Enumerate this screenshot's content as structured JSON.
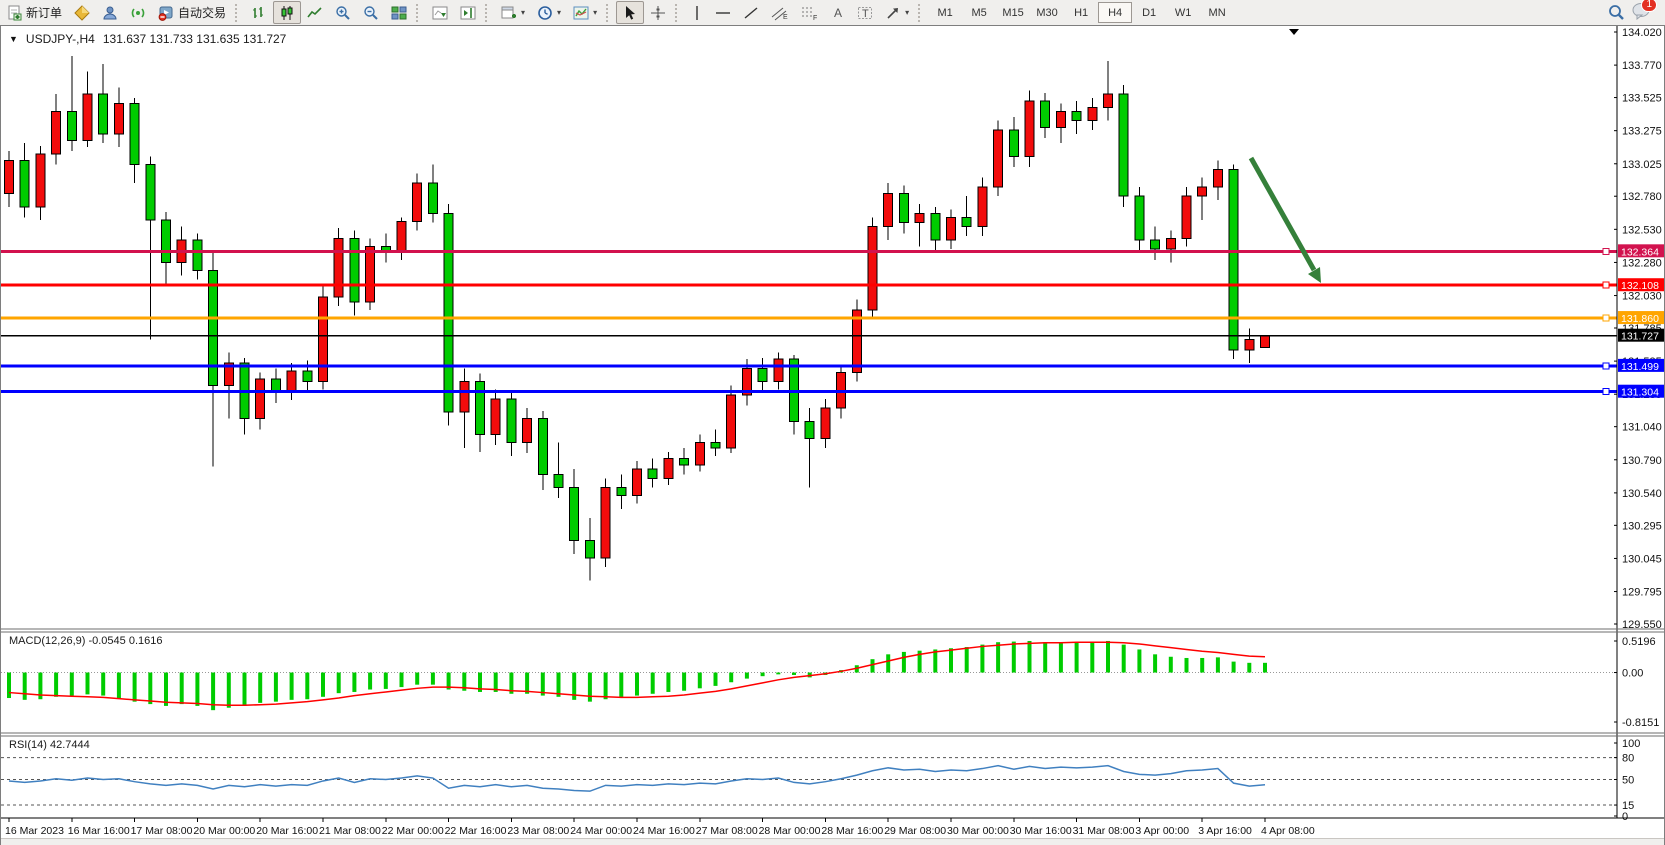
{
  "toolbar": {
    "new_order": "新订单",
    "auto_trading": "自动交易",
    "timeframes": [
      "M1",
      "M5",
      "M15",
      "M30",
      "H1",
      "H4",
      "D1",
      "W1",
      "MN"
    ],
    "active_timeframe": "H4",
    "notification_count": "1"
  },
  "chart": {
    "symbol_period": "USDJPY-,H4",
    "ohlc_text": "131.637 131.733 131.635 131.727",
    "current_price": "131.727"
  },
  "macd": {
    "label": "MACD(12,26,9) -0.0545 0.1616"
  },
  "rsi": {
    "label": "RSI(14) 42.7444"
  },
  "chart_data": {
    "type": "candlestick",
    "symbol": "USDJPY-",
    "period": "H4",
    "ylim": [
      129.55,
      134.02
    ],
    "price_axis_ticks": [
      "134.020",
      "133.770",
      "133.525",
      "133.275",
      "133.025",
      "132.780",
      "132.530",
      "132.280",
      "132.030",
      "131.785",
      "131.535",
      "131.285",
      "131.040",
      "130.790",
      "130.540",
      "130.295",
      "130.045",
      "129.795",
      "129.550"
    ],
    "date_labels": [
      "16 Mar 2023",
      "16 Mar 16:00",
      "17 Mar 08:00",
      "20 Mar 00:00",
      "20 Mar 16:00",
      "21 Mar 08:00",
      "22 Mar 00:00",
      "22 Mar 16:00",
      "23 Mar 08:00",
      "24 Mar 00:00",
      "24 Mar 16:00",
      "27 Mar 08:00",
      "28 Mar 00:00",
      "28 Mar 16:00",
      "29 Mar 08:00",
      "30 Mar 00:00",
      "30 Mar 16:00",
      "31 Mar 08:00",
      "3 Apr 00:00",
      "3 Apr 16:00",
      "4 Apr 08:00"
    ],
    "up_color": "#F20C0C",
    "down_color": "#00CC00",
    "candles_ohlc": [
      [
        132.8,
        133.12,
        132.7,
        133.05
      ],
      [
        133.05,
        133.18,
        132.62,
        132.7
      ],
      [
        132.7,
        133.16,
        132.6,
        133.1
      ],
      [
        133.1,
        133.55,
        133.02,
        133.42
      ],
      [
        133.42,
        133.84,
        133.12,
        133.2
      ],
      [
        133.2,
        133.72,
        133.15,
        133.55
      ],
      [
        133.55,
        133.78,
        133.18,
        133.25
      ],
      [
        133.25,
        133.6,
        133.15,
        133.48
      ],
      [
        133.48,
        133.52,
        132.88,
        133.02
      ],
      [
        133.02,
        133.08,
        131.7,
        132.6
      ],
      [
        132.6,
        132.66,
        132.1,
        132.28
      ],
      [
        132.28,
        132.55,
        132.18,
        132.45
      ],
      [
        132.45,
        132.5,
        132.15,
        132.22
      ],
      [
        132.22,
        132.35,
        130.74,
        131.35
      ],
      [
        131.35,
        131.6,
        131.1,
        131.52
      ],
      [
        131.52,
        131.56,
        130.98,
        131.1
      ],
      [
        131.1,
        131.45,
        131.02,
        131.4
      ],
      [
        131.4,
        131.48,
        131.22,
        131.3
      ],
      [
        131.3,
        131.52,
        131.24,
        131.46
      ],
      [
        131.46,
        131.54,
        131.3,
        131.38
      ],
      [
        131.38,
        132.1,
        131.32,
        132.02
      ],
      [
        132.02,
        132.54,
        131.95,
        132.46
      ],
      [
        132.46,
        132.52,
        131.88,
        131.98
      ],
      [
        131.98,
        132.46,
        131.92,
        132.4
      ],
      [
        132.4,
        132.5,
        132.28,
        132.36
      ],
      [
        132.37,
        132.62,
        132.3,
        132.59
      ],
      [
        132.59,
        132.95,
        132.52,
        132.88
      ],
      [
        132.88,
        133.02,
        132.58,
        132.65
      ],
      [
        132.65,
        132.72,
        131.05,
        131.15
      ],
      [
        131.15,
        131.48,
        130.88,
        131.38
      ],
      [
        131.38,
        131.44,
        130.85,
        130.98
      ],
      [
        130.98,
        131.32,
        130.9,
        131.25
      ],
      [
        131.25,
        131.3,
        130.82,
        130.92
      ],
      [
        130.92,
        131.18,
        130.84,
        131.1
      ],
      [
        131.1,
        131.16,
        130.56,
        130.68
      ],
      [
        130.68,
        130.92,
        130.5,
        130.58
      ],
      [
        130.58,
        130.72,
        130.08,
        130.18
      ],
      [
        130.18,
        130.35,
        129.88,
        130.05
      ],
      [
        130.05,
        130.65,
        129.98,
        130.58
      ],
      [
        130.58,
        130.68,
        130.42,
        130.52
      ],
      [
        130.52,
        130.78,
        130.46,
        130.72
      ],
      [
        130.72,
        130.8,
        130.58,
        130.65
      ],
      [
        130.65,
        130.85,
        130.6,
        130.8
      ],
      [
        130.8,
        130.88,
        130.68,
        130.75
      ],
      [
        130.75,
        130.98,
        130.7,
        130.92
      ],
      [
        130.92,
        131.02,
        130.82,
        130.88
      ],
      [
        130.88,
        131.35,
        130.84,
        131.28
      ],
      [
        131.28,
        131.55,
        131.2,
        131.48
      ],
      [
        131.48,
        131.56,
        131.3,
        131.38
      ],
      [
        131.38,
        131.6,
        131.32,
        131.55
      ],
      [
        131.55,
        131.58,
        130.98,
        131.08
      ],
      [
        131.08,
        131.18,
        130.58,
        130.95
      ],
      [
        130.95,
        131.25,
        130.88,
        131.18
      ],
      [
        131.18,
        131.5,
        131.1,
        131.45
      ],
      [
        131.45,
        132.0,
        131.38,
        131.92
      ],
      [
        131.92,
        132.62,
        131.85,
        132.55
      ],
      [
        132.55,
        132.88,
        132.45,
        132.8
      ],
      [
        132.8,
        132.86,
        132.5,
        132.58
      ],
      [
        132.58,
        132.72,
        132.4,
        132.65
      ],
      [
        132.65,
        132.7,
        132.35,
        132.45
      ],
      [
        132.45,
        132.68,
        132.38,
        132.62
      ],
      [
        132.62,
        132.78,
        132.48,
        132.55
      ],
      [
        132.55,
        132.92,
        132.48,
        132.85
      ],
      [
        132.85,
        133.35,
        132.78,
        133.28
      ],
      [
        133.28,
        133.38,
        133.0,
        133.08
      ],
      [
        133.08,
        133.58,
        133.0,
        133.5
      ],
      [
        133.5,
        133.56,
        133.22,
        133.3
      ],
      [
        133.3,
        133.48,
        133.18,
        133.42
      ],
      [
        133.42,
        133.5,
        133.25,
        133.35
      ],
      [
        133.35,
        133.52,
        133.28,
        133.45
      ],
      [
        133.45,
        133.8,
        133.35,
        133.55
      ],
      [
        133.55,
        133.62,
        132.7,
        132.78
      ],
      [
        132.78,
        132.85,
        132.35,
        132.45
      ],
      [
        132.45,
        132.55,
        132.3,
        132.38
      ],
      [
        132.38,
        132.52,
        132.28,
        132.46
      ],
      [
        132.46,
        132.85,
        132.4,
        132.78
      ],
      [
        132.78,
        132.92,
        132.6,
        132.85
      ],
      [
        132.85,
        133.05,
        132.75,
        132.98
      ],
      [
        132.98,
        133.02,
        131.55,
        131.62
      ],
      [
        131.62,
        131.78,
        131.52,
        131.7
      ],
      [
        131.637,
        131.733,
        131.635,
        131.727
      ]
    ],
    "horizontal_lines": [
      {
        "price": 132.364,
        "label": "132.364",
        "color": "#D2124E"
      },
      {
        "price": 132.108,
        "label": "132.108",
        "color": "#FF0000"
      },
      {
        "price": 131.86,
        "label": "131.860",
        "color": "#FFA500"
      },
      {
        "price": 131.499,
        "label": "131.499",
        "color": "#0000FF"
      },
      {
        "price": 131.304,
        "label": "131.304",
        "color": "#0000FF"
      }
    ],
    "bid_line": {
      "price": 131.727,
      "label": "131.727",
      "color": "#000000"
    },
    "annotation_arrow": {
      "from": [
        1250,
        157
      ],
      "to": [
        1320,
        282
      ],
      "color": "#35803A"
    },
    "macd_panel": {
      "axis_labels": [
        {
          "v": 0.5196,
          "t": "0.5196"
        },
        {
          "v": 0.0,
          "t": "0.00"
        },
        {
          "v": -0.8151,
          "t": "-0.8151"
        }
      ],
      "range": [
        -0.8151,
        0.5196
      ],
      "histogram_color": "#00CC00",
      "signal_color": "#FF0000",
      "histogram": [
        -0.42,
        -0.45,
        -0.44,
        -0.4,
        -0.38,
        -0.36,
        -0.38,
        -0.42,
        -0.48,
        -0.52,
        -0.55,
        -0.52,
        -0.55,
        -0.62,
        -0.58,
        -0.55,
        -0.5,
        -0.48,
        -0.45,
        -0.44,
        -0.4,
        -0.34,
        -0.32,
        -0.28,
        -0.27,
        -0.24,
        -0.2,
        -0.2,
        -0.28,
        -0.3,
        -0.32,
        -0.32,
        -0.35,
        -0.35,
        -0.38,
        -0.4,
        -0.45,
        -0.48,
        -0.44,
        -0.42,
        -0.38,
        -0.35,
        -0.32,
        -0.3,
        -0.26,
        -0.22,
        -0.16,
        -0.1,
        -0.06,
        -0.03,
        -0.04,
        -0.08,
        -0.04,
        0.04,
        0.12,
        0.22,
        0.3,
        0.34,
        0.36,
        0.38,
        0.4,
        0.42,
        0.46,
        0.5,
        0.51,
        0.52,
        0.5,
        0.49,
        0.5,
        0.51,
        0.52,
        0.46,
        0.38,
        0.3,
        0.26,
        0.24,
        0.24,
        0.25,
        0.18,
        0.16,
        0.16
      ],
      "signal": [
        -0.33,
        -0.35,
        -0.37,
        -0.38,
        -0.39,
        -0.4,
        -0.41,
        -0.43,
        -0.45,
        -0.47,
        -0.49,
        -0.5,
        -0.51,
        -0.53,
        -0.54,
        -0.54,
        -0.53,
        -0.52,
        -0.5,
        -0.48,
        -0.45,
        -0.42,
        -0.38,
        -0.35,
        -0.32,
        -0.29,
        -0.26,
        -0.24,
        -0.24,
        -0.25,
        -0.27,
        -0.28,
        -0.3,
        -0.31,
        -0.33,
        -0.35,
        -0.37,
        -0.39,
        -0.4,
        -0.41,
        -0.41,
        -0.4,
        -0.39,
        -0.37,
        -0.34,
        -0.31,
        -0.27,
        -0.22,
        -0.17,
        -0.12,
        -0.08,
        -0.05,
        -0.02,
        0.02,
        0.07,
        0.13,
        0.19,
        0.25,
        0.3,
        0.34,
        0.37,
        0.4,
        0.43,
        0.45,
        0.47,
        0.48,
        0.49,
        0.49,
        0.5,
        0.5,
        0.5,
        0.49,
        0.47,
        0.44,
        0.41,
        0.38,
        0.35,
        0.33,
        0.3,
        0.27,
        0.26
      ]
    },
    "rsi_panel": {
      "axis_labels": [
        {
          "v": 100,
          "t": "100"
        },
        {
          "v": 80,
          "t": "80"
        },
        {
          "v": 50,
          "t": "50"
        },
        {
          "v": 15,
          "t": "15"
        },
        {
          "v": 0,
          "t": "0"
        }
      ],
      "levels": [
        80,
        50,
        15
      ],
      "color": "#4080C0",
      "values": [
        48,
        46,
        48,
        51,
        49,
        52,
        50,
        51,
        47,
        44,
        42,
        44,
        42,
        37,
        42,
        40,
        43,
        41,
        43,
        42,
        48,
        52,
        46,
        51,
        50,
        52,
        55,
        52,
        38,
        42,
        40,
        43,
        40,
        42,
        38,
        37,
        35,
        34,
        42,
        41,
        43,
        42,
        44,
        43,
        45,
        44,
        48,
        51,
        50,
        52,
        46,
        44,
        47,
        51,
        56,
        62,
        66,
        63,
        64,
        61,
        63,
        62,
        65,
        69,
        64,
        68,
        65,
        67,
        66,
        67,
        69,
        61,
        57,
        56,
        58,
        62,
        63,
        65,
        45,
        41,
        42.74
      ]
    }
  }
}
